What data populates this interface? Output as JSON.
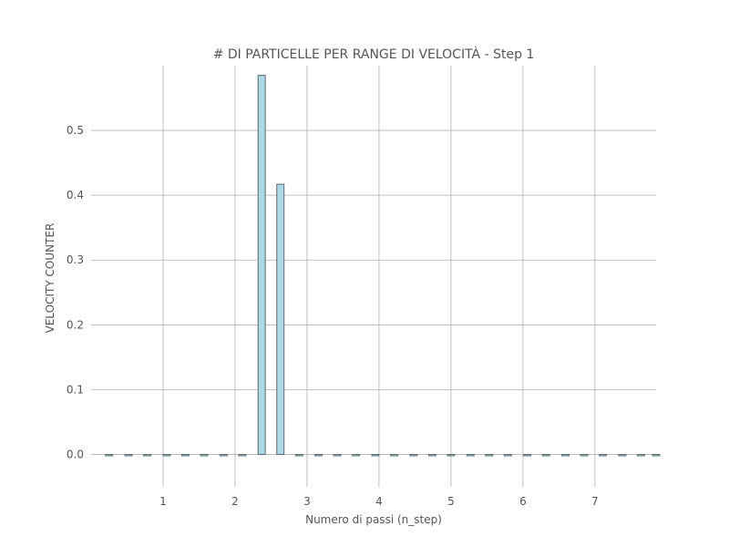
{
  "chart_data": {
    "type": "bar",
    "title": "# DI PARTICELLE PER RANGE DI VELOCITÀ - Step 1",
    "xlabel": "Numero di passi (n_step)",
    "ylabel": "VELOCITY COUNTER",
    "xlim": [
      0,
      7.85
    ],
    "ylim": [
      -0.05,
      0.6
    ],
    "x_ticks": [
      1,
      2,
      3,
      4,
      5,
      6,
      7
    ],
    "y_ticks": [
      0.0,
      0.1,
      0.2,
      0.3,
      0.4,
      0.5
    ],
    "y_tick_labels": [
      "0.0",
      "0.1",
      "0.2",
      "0.3",
      "0.4",
      "0.5"
    ],
    "bar_width": 0.1,
    "grid": true,
    "bar_color": "#add8e6",
    "edge_color": "#5a6a70",
    "bars": [
      {
        "x": 0.25,
        "value": 0
      },
      {
        "x": 0.52,
        "value": 0
      },
      {
        "x": 0.78,
        "value": 0
      },
      {
        "x": 1.05,
        "value": 0
      },
      {
        "x": 1.31,
        "value": 0
      },
      {
        "x": 1.57,
        "value": 0
      },
      {
        "x": 1.84,
        "value": 0
      },
      {
        "x": 2.1,
        "value": 0
      },
      {
        "x": 2.37,
        "value": 0.585
      },
      {
        "x": 2.63,
        "value": 0.417
      },
      {
        "x": 2.89,
        "value": 0
      },
      {
        "x": 3.16,
        "value": 0
      },
      {
        "x": 3.42,
        "value": 0
      },
      {
        "x": 3.68,
        "value": 0
      },
      {
        "x": 3.95,
        "value": 0
      },
      {
        "x": 4.21,
        "value": 0
      },
      {
        "x": 4.48,
        "value": 0
      },
      {
        "x": 4.74,
        "value": 0
      },
      {
        "x": 5.0,
        "value": 0
      },
      {
        "x": 5.27,
        "value": 0
      },
      {
        "x": 5.53,
        "value": 0
      },
      {
        "x": 5.79,
        "value": 0
      },
      {
        "x": 6.06,
        "value": 0
      },
      {
        "x": 6.32,
        "value": 0
      },
      {
        "x": 6.59,
        "value": 0
      },
      {
        "x": 6.85,
        "value": 0
      },
      {
        "x": 7.11,
        "value": 0
      },
      {
        "x": 7.38,
        "value": 0
      },
      {
        "x": 7.64,
        "value": 0
      },
      {
        "x": 7.85,
        "value": 0
      }
    ]
  }
}
